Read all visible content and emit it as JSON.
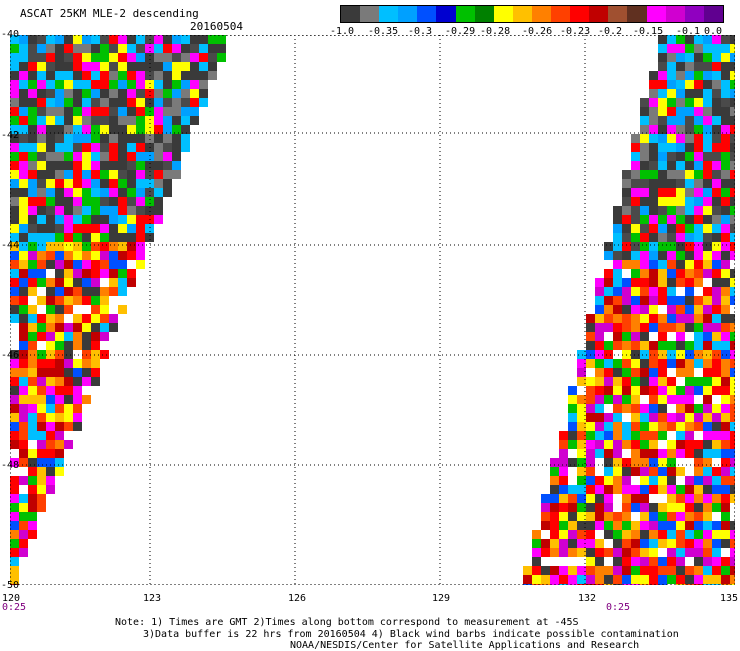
{
  "title": "ASCAT 25KM MLE-2 descending",
  "date": "20160504",
  "colorbar": {
    "colors": [
      "#3a3a3a",
      "#7a7a7a",
      "#00bfff",
      "#00a0ff",
      "#0050ff",
      "#0000d0",
      "#00c000",
      "#008000",
      "#ffff00",
      "#ffc000",
      "#ff8000",
      "#ff4000",
      "#ff0000",
      "#c00000",
      "#a05030",
      "#603020",
      "#ff00ff",
      "#d000d0",
      "#9000c0",
      "#600090"
    ],
    "labels": [
      "-1.0",
      "-0.35",
      "-0.3",
      "-0.29",
      "-0.28",
      "-0.26",
      "-0.23",
      "-0.2",
      "-0.15",
      "-0.1",
      "0.0"
    ]
  },
  "axes": {
    "x_ticks": [
      "120",
      "123",
      "126",
      "129",
      "132",
      "135"
    ],
    "y_ticks": [
      "-40",
      "-42",
      "-44",
      "-46",
      "-48",
      "-50"
    ],
    "time_marks": [
      "0:25",
      "0:25"
    ]
  },
  "notes": [
    "Note: 1) Times are GMT 2)Times along bottom correspond to measurement at -45S",
    "3)Data buffer is 22 hrs from 20160504 4) Black wind barbs indicate possible contamination",
    "NOAA/NESDIS/Center for Satellite Applications and Research"
  ]
}
